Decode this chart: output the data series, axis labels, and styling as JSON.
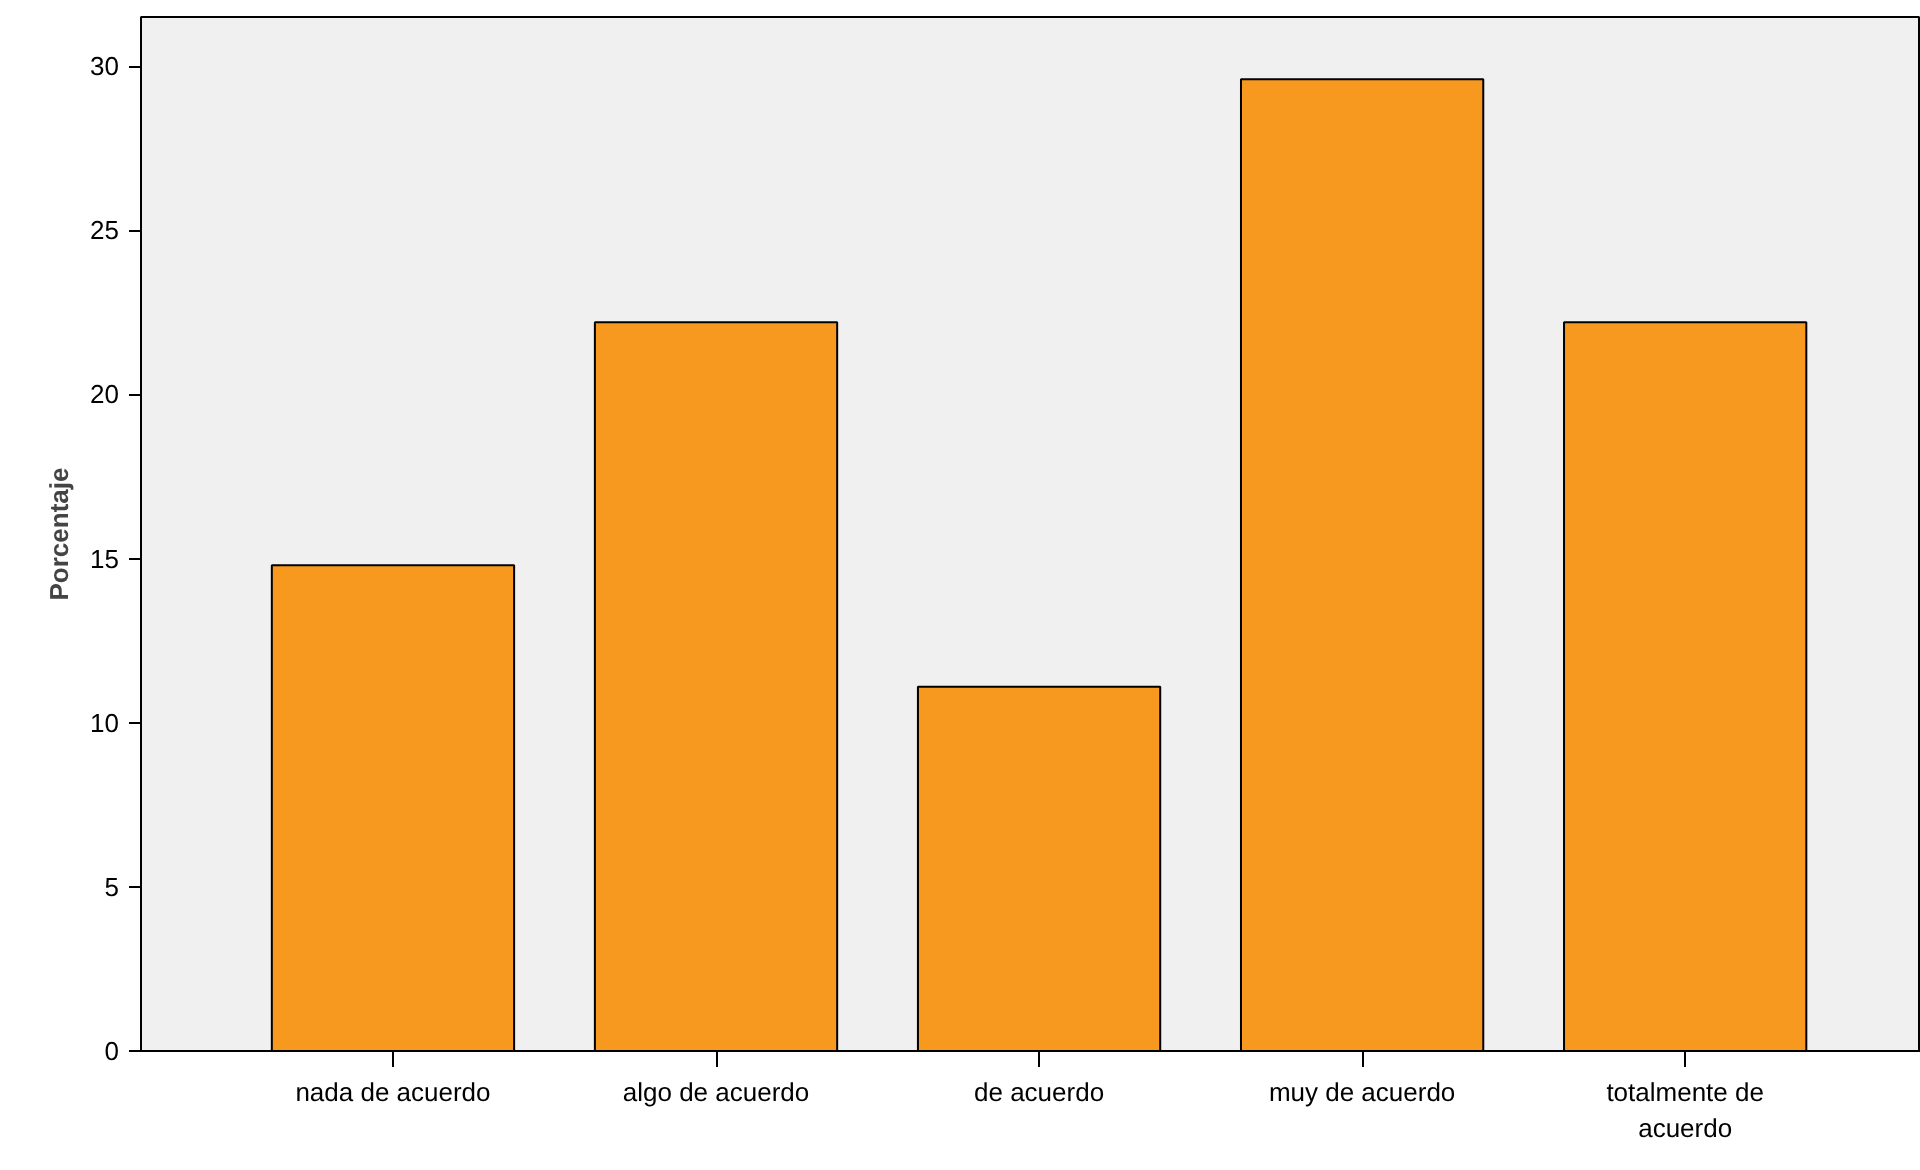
{
  "chart_data": {
    "type": "bar",
    "ylabel": "Porcentaje",
    "categories": [
      "nada de acuerdo",
      "algo de acuerdo",
      "de acuerdo",
      "muy de acuerdo",
      "totalmente de acuerdo"
    ],
    "values": [
      14.8,
      22.2,
      11.1,
      29.6,
      22.2
    ],
    "color": "#f7991f",
    "ylim": [
      0,
      31.5
    ],
    "yticks": [
      0,
      5,
      10,
      15,
      20,
      25,
      30
    ],
    "grid": false
  }
}
